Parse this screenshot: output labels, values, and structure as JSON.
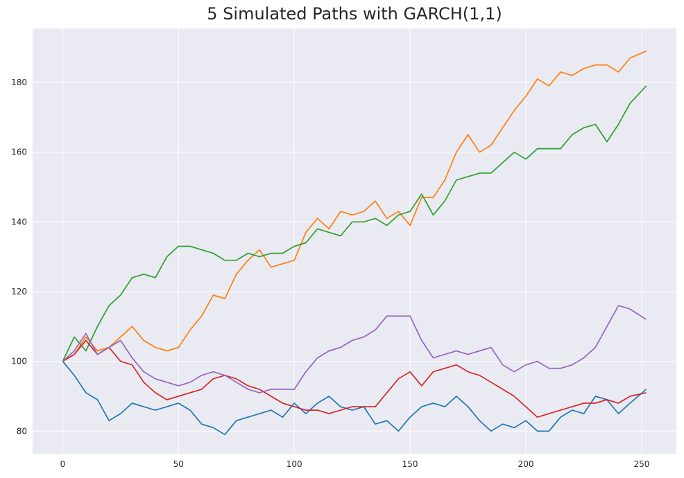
{
  "chart_data": {
    "type": "line",
    "title": "5 Simulated Paths with GARCH(1,1)",
    "xlabel": "",
    "ylabel": "",
    "xlim": [
      -13,
      265
    ],
    "ylim": [
      73.5,
      195.5
    ],
    "xticks": [
      0,
      50,
      100,
      150,
      200,
      250
    ],
    "yticks": [
      80,
      100,
      120,
      140,
      160,
      180
    ],
    "grid": true,
    "background": "#EAEAF2",
    "series": [
      {
        "color": "#1f77b4",
        "x": [
          0,
          5,
          10,
          15,
          20,
          25,
          30,
          35,
          40,
          45,
          50,
          55,
          60,
          65,
          70,
          75,
          80,
          85,
          90,
          95,
          100,
          105,
          110,
          115,
          120,
          125,
          130,
          135,
          140,
          145,
          150,
          155,
          160,
          165,
          170,
          175,
          180,
          185,
          190,
          195,
          200,
          205,
          210,
          215,
          220,
          225,
          230,
          235,
          240,
          245,
          252
        ],
        "values": [
          100,
          96,
          91,
          89,
          83,
          85,
          88,
          87,
          86,
          87,
          88,
          86,
          82,
          81,
          79,
          83,
          84,
          85,
          86,
          84,
          88,
          85,
          88,
          90,
          87,
          86,
          87,
          82,
          83,
          80,
          84,
          87,
          88,
          87,
          90,
          87,
          83,
          80,
          82,
          81,
          83,
          80,
          80,
          84,
          86,
          85,
          90,
          89,
          85,
          88,
          92
        ]
      },
      {
        "color": "#ff7f0e",
        "x": [
          0,
          5,
          10,
          15,
          20,
          25,
          30,
          35,
          40,
          45,
          50,
          55,
          60,
          65,
          70,
          75,
          80,
          85,
          90,
          95,
          100,
          105,
          110,
          115,
          120,
          125,
          130,
          135,
          140,
          145,
          150,
          155,
          160,
          165,
          170,
          175,
          180,
          185,
          190,
          195,
          200,
          205,
          210,
          215,
          220,
          225,
          230,
          235,
          240,
          245,
          252
        ],
        "values": [
          100,
          102,
          107,
          103,
          104,
          107,
          110,
          106,
          104,
          103,
          104,
          109,
          113,
          119,
          118,
          125,
          129,
          132,
          127,
          128,
          129,
          137,
          141,
          138,
          143,
          142,
          143,
          146,
          141,
          143,
          139,
          147,
          147,
          152,
          160,
          165,
          160,
          162,
          167,
          172,
          176,
          181,
          179,
          183,
          182,
          184,
          185,
          185,
          183,
          187,
          189
        ]
      },
      {
        "color": "#2ca02c",
        "x": [
          0,
          5,
          10,
          15,
          20,
          25,
          30,
          35,
          40,
          45,
          50,
          55,
          60,
          65,
          70,
          75,
          80,
          85,
          90,
          95,
          100,
          105,
          110,
          115,
          120,
          125,
          130,
          135,
          140,
          145,
          150,
          155,
          160,
          165,
          170,
          175,
          180,
          185,
          190,
          195,
          200,
          205,
          210,
          215,
          220,
          225,
          230,
          235,
          240,
          245,
          252
        ],
        "values": [
          100,
          107,
          103,
          110,
          116,
          119,
          124,
          125,
          124,
          130,
          133,
          133,
          132,
          131,
          129,
          129,
          131,
          130,
          131,
          131,
          133,
          134,
          138,
          137,
          136,
          140,
          140,
          141,
          139,
          142,
          143,
          148,
          142,
          146,
          152,
          153,
          154,
          154,
          157,
          160,
          158,
          161,
          161,
          161,
          165,
          167,
          168,
          163,
          168,
          174,
          179
        ]
      },
      {
        "color": "#d62728",
        "x": [
          0,
          5,
          10,
          15,
          20,
          25,
          30,
          35,
          40,
          45,
          50,
          55,
          60,
          65,
          70,
          75,
          80,
          85,
          90,
          95,
          100,
          105,
          110,
          115,
          120,
          125,
          130,
          135,
          140,
          145,
          150,
          155,
          160,
          165,
          170,
          175,
          180,
          185,
          190,
          195,
          200,
          205,
          210,
          215,
          220,
          225,
          230,
          235,
          240,
          245,
          252
        ],
        "values": [
          100,
          102,
          106,
          102,
          104,
          100,
          99,
          94,
          91,
          89,
          90,
          91,
          92,
          95,
          96,
          95,
          93,
          92,
          90,
          88,
          87,
          86,
          86,
          85,
          86,
          87,
          87,
          87,
          91,
          95,
          97,
          93,
          97,
          98,
          99,
          97,
          96,
          94,
          92,
          90,
          87,
          84,
          85,
          86,
          87,
          88,
          88,
          89,
          88,
          90,
          91
        ]
      },
      {
        "color": "#9467bd",
        "x": [
          0,
          5,
          10,
          15,
          20,
          25,
          30,
          35,
          40,
          45,
          50,
          55,
          60,
          65,
          70,
          75,
          80,
          85,
          90,
          95,
          100,
          105,
          110,
          115,
          120,
          125,
          130,
          135,
          140,
          145,
          150,
          155,
          160,
          165,
          170,
          175,
          180,
          185,
          190,
          195,
          200,
          205,
          210,
          215,
          220,
          225,
          230,
          235,
          240,
          245,
          252
        ],
        "values": [
          100,
          103,
          108,
          102,
          104,
          106,
          101,
          97,
          95,
          94,
          93,
          94,
          96,
          97,
          96,
          94,
          92,
          91,
          92,
          92,
          92,
          97,
          101,
          103,
          104,
          106,
          107,
          109,
          113,
          113,
          113,
          106,
          101,
          102,
          103,
          102,
          103,
          104,
          99,
          97,
          99,
          100,
          98,
          98,
          99,
          101,
          104,
          110,
          116,
          115,
          112
        ]
      }
    ]
  }
}
